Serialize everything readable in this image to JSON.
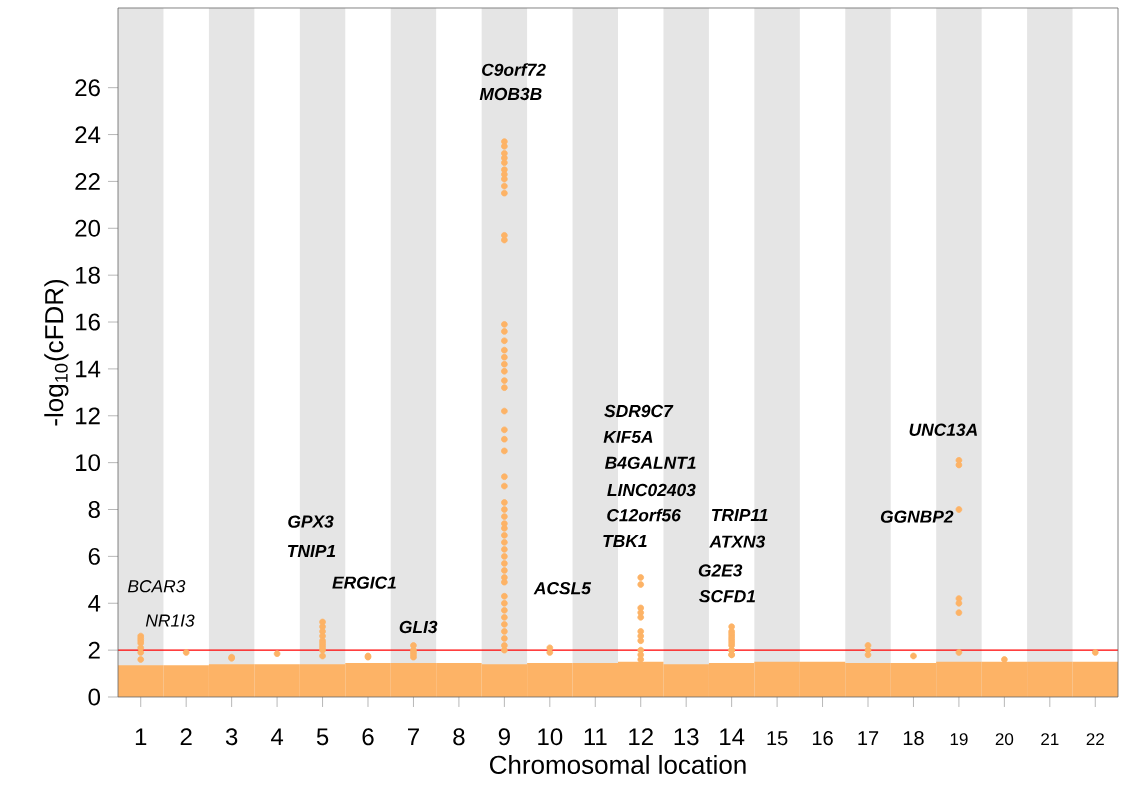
{
  "chart_data": {
    "type": "scatter",
    "xlabel": "Chromosomal location",
    "ylabel": "-log$_{10}$(cFDR)",
    "categories": [
      "1",
      "2",
      "3",
      "4",
      "5",
      "6",
      "7",
      "8",
      "9",
      "10",
      "11",
      "12",
      "13",
      "14",
      "15",
      "16",
      "17",
      "18",
      "19",
      "20",
      "21",
      "22"
    ],
    "ylim": [
      0,
      29.4
    ],
    "yticks": [
      0,
      2,
      4,
      6,
      8,
      10,
      12,
      14,
      16,
      18,
      20,
      22,
      24,
      26
    ],
    "marker": "circle",
    "bands": [
      {
        "axis": "x",
        "from": "1",
        "to": "1",
        "color": "#e5e5e5"
      },
      {
        "axis": "x",
        "from": "3",
        "to": "3",
        "color": "#e5e5e5"
      },
      {
        "axis": "x",
        "from": "5",
        "to": "5",
        "color": "#e5e5e5"
      },
      {
        "axis": "x",
        "from": "7",
        "to": "7",
        "color": "#e5e5e5"
      },
      {
        "axis": "x",
        "from": "9",
        "to": "9",
        "color": "#e5e5e5"
      },
      {
        "axis": "x",
        "from": "11",
        "to": "11",
        "color": "#e5e5e5"
      },
      {
        "axis": "x",
        "from": "13",
        "to": "13",
        "color": "#e5e5e5"
      },
      {
        "axis": "x",
        "from": "15",
        "to": "15",
        "color": "#e5e5e5"
      },
      {
        "axis": "x",
        "from": "17",
        "to": "17",
        "color": "#e5e5e5"
      },
      {
        "axis": "x",
        "from": "19",
        "to": "19",
        "color": "#e5e5e5"
      },
      {
        "axis": "x",
        "from": "21",
        "to": "21",
        "color": "#e5e5e5"
      }
    ],
    "ref_lines": [
      {
        "axis": "y",
        "value": 2,
        "color": "#ff0000"
      }
    ],
    "series": [
      {
        "type": "bar",
        "color": "#fdb366",
        "values": [
          1.35,
          1.35,
          1.4,
          1.4,
          1.4,
          1.45,
          1.45,
          1.45,
          1.4,
          1.45,
          1.45,
          1.5,
          1.4,
          1.45,
          1.5,
          1.5,
          1.45,
          1.45,
          1.5,
          1.5,
          1.5,
          1.5
        ]
      },
      {
        "color": "#fdb366",
        "x": [
          "1",
          "1",
          "1",
          "1",
          "1",
          "1",
          "1",
          "2",
          "3",
          "3",
          "4",
          "5",
          "5",
          "5",
          "5",
          "5",
          "5",
          "5",
          "5",
          "5",
          "5",
          "6",
          "6",
          "7",
          "7",
          "7",
          "7",
          "7",
          "9",
          "9",
          "9",
          "9",
          "9",
          "9",
          "9",
          "9",
          "9",
          "9",
          "9",
          "9",
          "9",
          "9",
          "9",
          "9",
          "9",
          "9",
          "9",
          "9",
          "9",
          "9",
          "9",
          "9",
          "9",
          "9",
          "9",
          "9",
          "9",
          "9",
          "9",
          "9",
          "9",
          "9",
          "9",
          "9",
          "9",
          "9",
          "9",
          "9",
          "9",
          "9",
          "9",
          "9",
          "9",
          "9",
          "9",
          "9",
          "9",
          "10",
          "10",
          "12",
          "12",
          "12",
          "12",
          "12",
          "12",
          "12",
          "12",
          "12",
          "12",
          "12",
          "14",
          "14",
          "14",
          "14",
          "14",
          "14",
          "14",
          "14",
          "14",
          "14",
          "14",
          "14",
          "17",
          "17",
          "17",
          "18",
          "19",
          "19",
          "19",
          "19",
          "19",
          "19",
          "19",
          "20",
          "22"
        ],
        "values": [
          2.6,
          2.5,
          2.4,
          2.3,
          2.1,
          1.9,
          1.6,
          1.9,
          1.7,
          1.65,
          1.85,
          1.75,
          3.2,
          3.0,
          2.8,
          2.6,
          2.4,
          2.2,
          2.0,
          2.3,
          2.1,
          1.7,
          1.75,
          2.2,
          2.0,
          1.9,
          1.7,
          1.8,
          23.7,
          23.5,
          23.2,
          23.0,
          22.8,
          22.5,
          22.3,
          22.1,
          21.8,
          21.5,
          19.7,
          19.5,
          15.9,
          15.6,
          15.2,
          14.8,
          14.5,
          14.2,
          13.9,
          13.5,
          13.2,
          12.2,
          11.4,
          11.0,
          10.5,
          9.4,
          9.0,
          8.3,
          8.0,
          7.7,
          7.4,
          7.2,
          6.9,
          6.6,
          6.3,
          6.0,
          5.7,
          5.4,
          5.1,
          4.9,
          4.3,
          4.0,
          3.7,
          3.4,
          3.1,
          2.8,
          2.5,
          2.2,
          2.0,
          2.1,
          1.9,
          5.1,
          4.8,
          3.8,
          3.6,
          3.4,
          2.8,
          2.6,
          2.4,
          2.0,
          1.8,
          1.6,
          3.0,
          2.8,
          2.6,
          2.4,
          2.2,
          2.0,
          1.8,
          2.7,
          2.5,
          2.3,
          2.0,
          1.8,
          2.2,
          2.0,
          1.8,
          1.75,
          10.1,
          9.9,
          8.0,
          4.2,
          4.0,
          3.6,
          1.9,
          1.6,
          1.9
        ]
      }
    ],
    "annotations": [
      "BCAR3",
      "NR1I3",
      "GPX3",
      "TNIP1",
      "ERGIC1",
      "GLI3",
      "C9orf72",
      "MOB3B",
      "ACSL5",
      "SDR9C7",
      "KIF5A",
      "B4GALNT1",
      "LINC02403",
      "C12orf56",
      "TBK1",
      "TRIP11",
      "ATXN3",
      "G2E3",
      "SCFD1",
      "UNC13A",
      "GGNBP2"
    ]
  }
}
